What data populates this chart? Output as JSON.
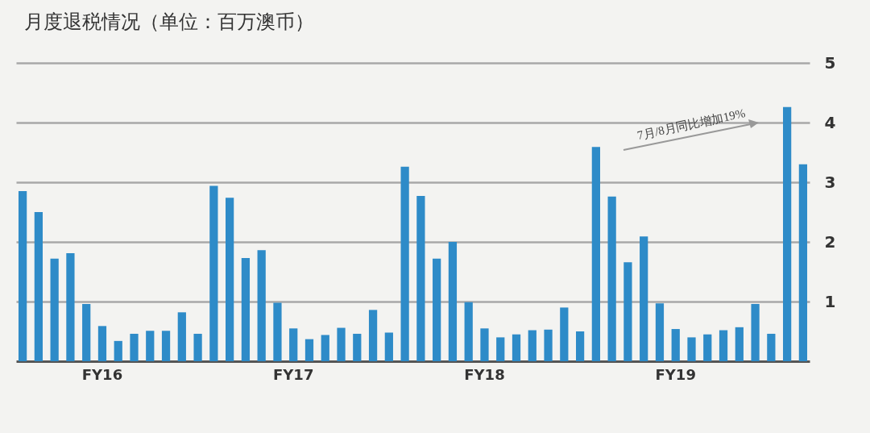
{
  "chart_data": {
    "type": "bar",
    "title": "月度退税情况（单位：百万澳币）",
    "categories": [
      null,
      null,
      null,
      null,
      null,
      "FY16",
      null,
      null,
      null,
      null,
      null,
      null,
      null,
      null,
      null,
      null,
      null,
      "FY17",
      null,
      null,
      null,
      null,
      null,
      null,
      null,
      null,
      null,
      null,
      null,
      "FY18",
      null,
      null,
      null,
      null,
      null,
      null,
      null,
      null,
      null,
      null,
      null,
      "FY19",
      null,
      null,
      null,
      null,
      null,
      null,
      null,
      null
    ],
    "values": [
      2.85,
      2.5,
      1.72,
      1.81,
      0.96,
      0.59,
      0.34,
      0.46,
      0.51,
      0.51,
      0.82,
      0.46,
      2.94,
      2.74,
      1.73,
      1.86,
      0.98,
      0.55,
      0.37,
      0.44,
      0.56,
      0.46,
      0.86,
      0.48,
      3.26,
      2.77,
      1.72,
      2.0,
      0.99,
      0.55,
      0.4,
      0.45,
      0.52,
      0.53,
      0.9,
      0.5,
      3.59,
      2.76,
      1.66,
      2.09,
      0.97,
      0.54,
      0.4,
      0.45,
      0.52,
      0.57,
      0.96,
      0.46,
      4.26,
      3.3
    ],
    "color": "#2e8bc8",
    "ylim": [
      0,
      5
    ],
    "yticks": [
      1,
      2,
      3,
      4,
      5
    ],
    "grid": "y",
    "annotations": [
      "7月/8月同比增加19%"
    ]
  }
}
